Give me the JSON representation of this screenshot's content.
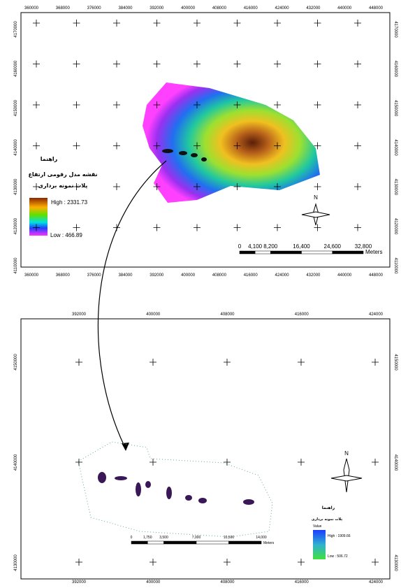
{
  "top_map": {
    "x_labels": [
      360000,
      368000,
      376000,
      384000,
      392000,
      400000,
      408000,
      416000,
      424000,
      432000,
      440000,
      448000
    ],
    "y_labels": [
      4170000,
      4160000,
      4150000,
      4140000,
      4130000,
      4120000,
      4110000
    ],
    "legend": {
      "title": "راهنما",
      "layer": "نقشه مدل رقومی ارتفاع",
      "plots": "پلات نمونه برداری",
      "high": "High : 2331.73",
      "low": "Low : 466.89"
    },
    "scale_bar": {
      "labels": [
        "0",
        "4,100",
        "8,200",
        "16,400",
        "24,600",
        "32,800"
      ],
      "unit": "Meters"
    },
    "north": "N"
  },
  "bottom_map": {
    "x_labels": [
      392000,
      400000,
      408000,
      416000,
      424000
    ],
    "y_labels": [
      4150000,
      4140000,
      4130000
    ],
    "legend": {
      "title": "راهنما",
      "plots": "پلات نمونه برداری",
      "field": "Value",
      "high": "High : 1909.66",
      "low": "Low : 506.72"
    },
    "scale_bar": {
      "labels": [
        "0",
        "1,750",
        "3,500",
        "7,000",
        "10,500",
        "14,000"
      ],
      "unit": "Meters"
    },
    "north": "N"
  }
}
